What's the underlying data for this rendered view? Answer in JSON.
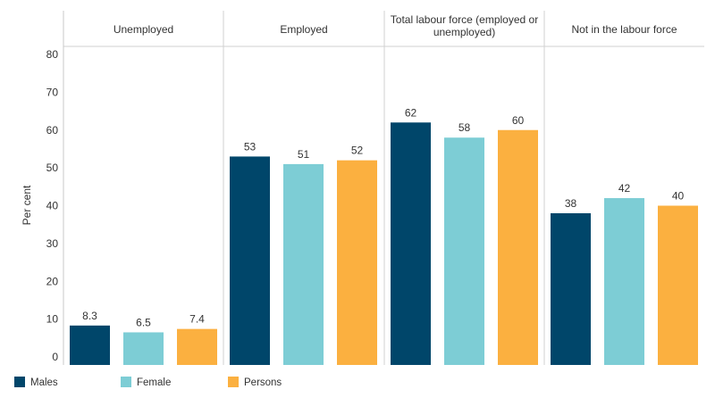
{
  "chart_data": {
    "type": "bar",
    "ylabel": "Per cent",
    "ylim": [
      0,
      80
    ],
    "yticks": [
      0,
      10,
      20,
      30,
      40,
      50,
      60,
      70,
      80
    ],
    "grid": false,
    "legend_position": "bottom-left",
    "panels": [
      {
        "title_lines": [
          "Unemployed"
        ],
        "values": [
          8.3,
          6.5,
          7.4
        ],
        "labels": [
          "8.3",
          "6.5",
          "7.4"
        ]
      },
      {
        "title_lines": [
          "Employed"
        ],
        "values": [
          53,
          51,
          52
        ],
        "labels": [
          "53",
          "51",
          "52"
        ]
      },
      {
        "title_lines": [
          "Total labour force (employed or",
          "unemployed)"
        ],
        "values": [
          62,
          58,
          60
        ],
        "labels": [
          "62",
          "58",
          "60"
        ]
      },
      {
        "title_lines": [
          "Not in the labour force"
        ],
        "values": [
          38,
          42,
          40
        ],
        "labels": [
          "38",
          "42",
          "40"
        ]
      }
    ],
    "series": [
      {
        "name": "Males",
        "color": "#00466a"
      },
      {
        "name": "Female",
        "color": "#7dcdd5"
      },
      {
        "name": "Persons",
        "color": "#fbb040"
      }
    ]
  }
}
